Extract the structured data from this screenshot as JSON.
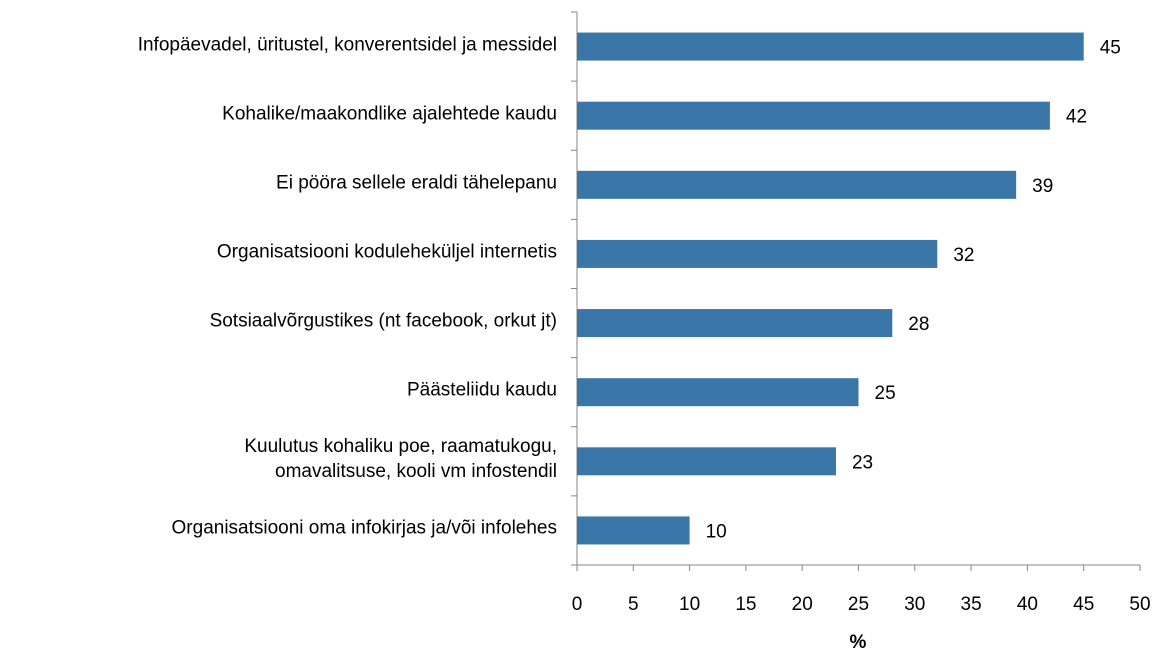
{
  "chart_data": {
    "type": "bar",
    "orientation": "horizontal",
    "categories": [
      "Infopäevadel, üritustel, konverentsidel ja messidel",
      "Kohalike/maakondlike ajalehtede kaudu",
      "Ei pööra sellele eraldi tähelepanu",
      "Organisatsiooni koduleheküljel internetis",
      "Sotsiaalvõrgustikes (nt facebook, orkut jt)",
      "Päästeliidu kaudu",
      "Kuulutus kohaliku poe, raamatukogu,\nomavalitsuse, kooli vm infostendil",
      "Organisatsiooni oma infokirjas ja/või infolehes"
    ],
    "values": [
      45,
      42,
      39,
      32,
      28,
      25,
      23,
      10
    ],
    "color": "#3a76a8",
    "xlim": [
      0,
      50
    ],
    "xticks": [
      0,
      5,
      10,
      15,
      20,
      25,
      30,
      35,
      40,
      45,
      50
    ],
    "xlabel": "%",
    "grid": false
  }
}
